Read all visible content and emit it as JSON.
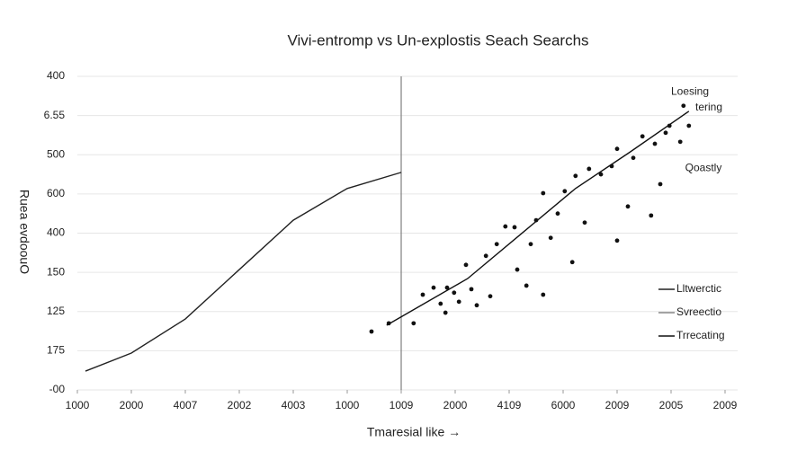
{
  "chart_data": {
    "type": "scatter",
    "title": "Vivi-entromp vs Un-explostis Seach Searchs",
    "xlabel": "Tmaresial like →",
    "ylabel": "Ruea evdoouO",
    "xlim": [
      0,
      12
    ],
    "ylim": [
      0,
      8
    ],
    "xticks": [
      {
        "value": 0,
        "label": "1000"
      },
      {
        "value": 1,
        "label": "2000"
      },
      {
        "value": 2,
        "label": "4007"
      },
      {
        "value": 3,
        "label": "2002"
      },
      {
        "value": 4,
        "label": "4003"
      },
      {
        "value": 5,
        "label": "1000"
      },
      {
        "value": 6,
        "label": "1009"
      },
      {
        "value": 7,
        "label": "2000"
      },
      {
        "value": 8,
        "label": "4109"
      },
      {
        "value": 9,
        "label": "6000"
      },
      {
        "value": 10,
        "label": "2009"
      },
      {
        "value": 11,
        "label": "2005"
      },
      {
        "value": 12,
        "label": "2009"
      }
    ],
    "yticks": [
      {
        "value": 0,
        "label": "-00"
      },
      {
        "value": 1,
        "label": "175"
      },
      {
        "value": 2,
        "label": "125"
      },
      {
        "value": 3,
        "label": "150"
      },
      {
        "value": 4,
        "label": "400"
      },
      {
        "value": 5,
        "label": "600"
      },
      {
        "value": 6,
        "label": "500"
      },
      {
        "value": 7,
        "label": "6.55"
      },
      {
        "value": 8,
        "label": "400"
      }
    ],
    "grid": true,
    "vline": 6,
    "series": [
      {
        "type": "line",
        "color": "#222222",
        "x": [
          0.15,
          1,
          2,
          3,
          4,
          5,
          6
        ],
        "values": [
          0.48,
          0.94,
          1.81,
          3.07,
          4.33,
          5.14,
          5.55
        ]
      },
      {
        "type": "line",
        "color": "#111111",
        "x": [
          5.73,
          7.23,
          8.23,
          9.23,
          10.23,
          11.33
        ],
        "values": [
          1.65,
          2.84,
          3.99,
          5.14,
          6.06,
          7.11
        ]
      },
      {
        "type": "scatter",
        "color": "#111111",
        "x": [
          5.45,
          5.77,
          6.23,
          6.4,
          6.6,
          6.73,
          6.82,
          6.85,
          6.98,
          7.07,
          7.2,
          7.3,
          7.4,
          7.57,
          7.65,
          7.77,
          7.93,
          8.1,
          8.15,
          8.32,
          8.4,
          8.5,
          8.63,
          8.63,
          8.77,
          8.9,
          9.03,
          9.17,
          9.23,
          9.4,
          9.48,
          9.7,
          9.9,
          10,
          10,
          10.2,
          10.3,
          10.47,
          10.63,
          10.7,
          10.8,
          10.9,
          10.97,
          11.17,
          11.23,
          11.33
        ],
        "values": [
          1.49,
          1.7,
          1.7,
          2.43,
          2.61,
          2.2,
          1.97,
          2.61,
          2.48,
          2.25,
          3.19,
          2.57,
          2.16,
          3.42,
          2.39,
          3.72,
          4.17,
          4.15,
          3.07,
          2.66,
          3.72,
          4.33,
          5.02,
          2.43,
          3.88,
          4.5,
          5.07,
          3.26,
          5.46,
          4.27,
          5.64,
          5.5,
          5.71,
          6.15,
          3.81,
          4.68,
          5.92,
          6.47,
          4.45,
          6.28,
          5.25,
          6.56,
          6.74,
          6.33,
          7.25,
          6.74
        ]
      }
    ],
    "annotations": [
      {
        "text": "Loesing",
        "x": 11.35,
        "y": 7.6
      },
      {
        "text": "tering",
        "x": 11.7,
        "y": 7.2
      },
      {
        "text": "Qoastly",
        "x": 11.6,
        "y": 5.65
      }
    ],
    "legend": {
      "corner": "lower right",
      "entries": [
        {
          "label": "Lltwerctic",
          "color": "#222222"
        },
        {
          "label": "Svreectio",
          "color": "#888888"
        },
        {
          "label": "Trrecating",
          "color": "#111111"
        }
      ]
    }
  }
}
